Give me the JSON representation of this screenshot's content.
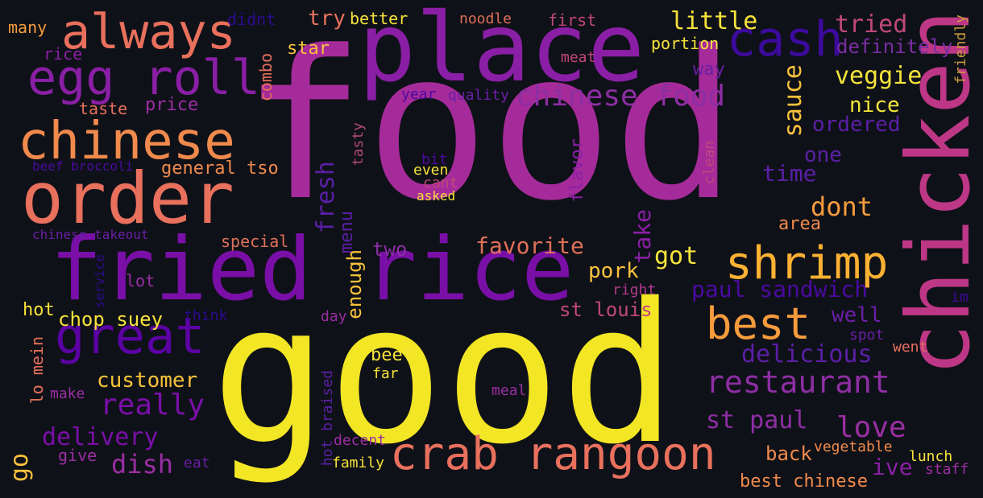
{
  "words": [
    {
      "text": "food",
      "color": "#a62b9a"
    },
    {
      "text": "good",
      "color": "#f3e624"
    },
    {
      "text": "place",
      "color": "#8a1fa6"
    },
    {
      "text": "chicken",
      "color": "#bd3786"
    },
    {
      "text": "fried rice",
      "color": "#7a0fa8"
    },
    {
      "text": "order",
      "color": "#e8705c"
    },
    {
      "text": "chinese",
      "color": "#f08a4c"
    },
    {
      "text": "egg roll",
      "color": "#8a1fa6"
    },
    {
      "text": "always",
      "color": "#e8705c"
    },
    {
      "text": "great",
      "color": "#5b02a3"
    },
    {
      "text": "crab rangoon",
      "color": "#e8705c"
    },
    {
      "text": "shrimp",
      "color": "#fdb132"
    },
    {
      "text": "cash",
      "color": "#3c0a9c"
    },
    {
      "text": "best",
      "color": "#f79c3c"
    },
    {
      "text": "chinese food",
      "color": "#8d2ea3"
    },
    {
      "text": "restaurant",
      "color": "#8d2ea3"
    },
    {
      "text": "little",
      "color": "#f7e23a"
    },
    {
      "text": "tried",
      "color": "#c0487a"
    },
    {
      "text": "veggie",
      "color": "#f5e43a"
    },
    {
      "text": "sauce",
      "color": "#f9c23c"
    },
    {
      "text": "really",
      "color": "#7a0fa8"
    },
    {
      "text": "delivery",
      "color": "#7a0fa8"
    },
    {
      "text": "love",
      "color": "#9a2ea3"
    },
    {
      "text": "st paul",
      "color": "#8d2ea3"
    },
    {
      "text": "delicious",
      "color": "#5b1fa6"
    },
    {
      "text": "dish",
      "color": "#9a2ea3"
    },
    {
      "text": "dont",
      "color": "#f79c3c"
    },
    {
      "text": "got",
      "color": "#f5e43a"
    },
    {
      "text": "take",
      "color": "#8a1fa6"
    },
    {
      "text": "favorite",
      "color": "#e07058"
    },
    {
      "text": "customer",
      "color": "#f7c23a"
    },
    {
      "text": "paul sandwich",
      "color": "#4a0aa0"
    },
    {
      "text": "time",
      "color": "#5b1fa6"
    },
    {
      "text": "ordered",
      "color": "#5b1fa6"
    },
    {
      "text": "nice",
      "color": "#f5e43a"
    },
    {
      "text": "one",
      "color": "#5b1fa6"
    },
    {
      "text": "definitely",
      "color": "#7a2ea3"
    },
    {
      "text": "fresh",
      "color": "#5b1fa6"
    },
    {
      "text": "menu",
      "color": "#5b1fa6"
    },
    {
      "text": "enough",
      "color": "#f7c23a"
    },
    {
      "text": "two",
      "color": "#8a2ea3"
    },
    {
      "text": "st louis",
      "color": "#c0487a"
    },
    {
      "text": "well",
      "color": "#6a1fa6"
    },
    {
      "text": "pork",
      "color": "#f9c23c"
    },
    {
      "text": "general tso",
      "color": "#f08a4c"
    },
    {
      "text": "price",
      "color": "#9a2ea3"
    },
    {
      "text": "taste",
      "color": "#e8705c"
    },
    {
      "text": "rice",
      "color": "#8a1fa6"
    },
    {
      "text": "many",
      "color": "#f79c3c"
    },
    {
      "text": "didnt",
      "color": "#2c0a8c"
    },
    {
      "text": "try",
      "color": "#e8705c"
    },
    {
      "text": "better",
      "color": "#f7e23a"
    },
    {
      "text": "noodle",
      "color": "#e07058"
    },
    {
      "text": "first",
      "color": "#c0487a"
    },
    {
      "text": "star",
      "color": "#f9c23c"
    },
    {
      "text": "meat",
      "color": "#c0487a"
    },
    {
      "text": "portion",
      "color": "#f5e43a"
    },
    {
      "text": "way",
      "color": "#6a1fa6"
    },
    {
      "text": "combo",
      "color": "#e8705c"
    },
    {
      "text": "year",
      "color": "#4a0aa0"
    },
    {
      "text": "quality",
      "color": "#6a1fa6"
    },
    {
      "text": "friendly",
      "color": "#c89a3c"
    },
    {
      "text": "tasty",
      "color": "#b04a6c"
    },
    {
      "text": "bit",
      "color": "#4a0aa0"
    },
    {
      "text": "even",
      "color": "#f7e23a"
    },
    {
      "text": "cant",
      "color": "#c0487a"
    },
    {
      "text": "asked",
      "color": "#f7e23a"
    },
    {
      "text": "flavor",
      "color": "#8a1fa6"
    },
    {
      "text": "clean",
      "color": "#c0487a"
    },
    {
      "text": "beef broccoli",
      "color": "#4a0aa0"
    },
    {
      "text": "chinese takeout",
      "color": "#6a1fa6"
    },
    {
      "text": "special",
      "color": "#e07058"
    },
    {
      "text": "lot",
      "color": "#9a2ea3"
    },
    {
      "text": "service",
      "color": "#2c0a8c"
    },
    {
      "text": "hot",
      "color": "#f7e23a"
    },
    {
      "text": "chop suey",
      "color": "#f7e23a"
    },
    {
      "text": "think",
      "color": "#2c0a8c"
    },
    {
      "text": "day",
      "color": "#9a2ea3"
    },
    {
      "text": "right",
      "color": "#b03a8c"
    },
    {
      "text": "area",
      "color": "#f08a4c"
    },
    {
      "text": "spot",
      "color": "#6a1fa6"
    },
    {
      "text": "went",
      "color": "#e8705c"
    },
    {
      "text": "im",
      "color": "#3c0a9c"
    },
    {
      "text": "lo mein",
      "color": "#e8705c"
    },
    {
      "text": "make",
      "color": "#9a2ea3"
    },
    {
      "text": "beef",
      "color": "#f7e23a"
    },
    {
      "text": "far",
      "color": "#f7e23a"
    },
    {
      "text": "meal",
      "color": "#9a2ea3"
    },
    {
      "text": "hot braised",
      "color": "#5b1fa6"
    },
    {
      "text": "decent",
      "color": "#9a2ea3"
    },
    {
      "text": "family",
      "color": "#f7e23a"
    },
    {
      "text": "back",
      "color": "#f08a4c"
    },
    {
      "text": "vegetable",
      "color": "#f08a4c"
    },
    {
      "text": "lunch",
      "color": "#f7e23a"
    },
    {
      "text": "ive",
      "color": "#8a1fa6"
    },
    {
      "text": "staff",
      "color": "#9a2ea3"
    },
    {
      "text": "best chinese",
      "color": "#f08a4c"
    },
    {
      "text": "go",
      "color": "#f9c23c"
    },
    {
      "text": "give",
      "color": "#9a2ea3"
    },
    {
      "text": "eat",
      "color": "#6a1fa6"
    }
  ]
}
